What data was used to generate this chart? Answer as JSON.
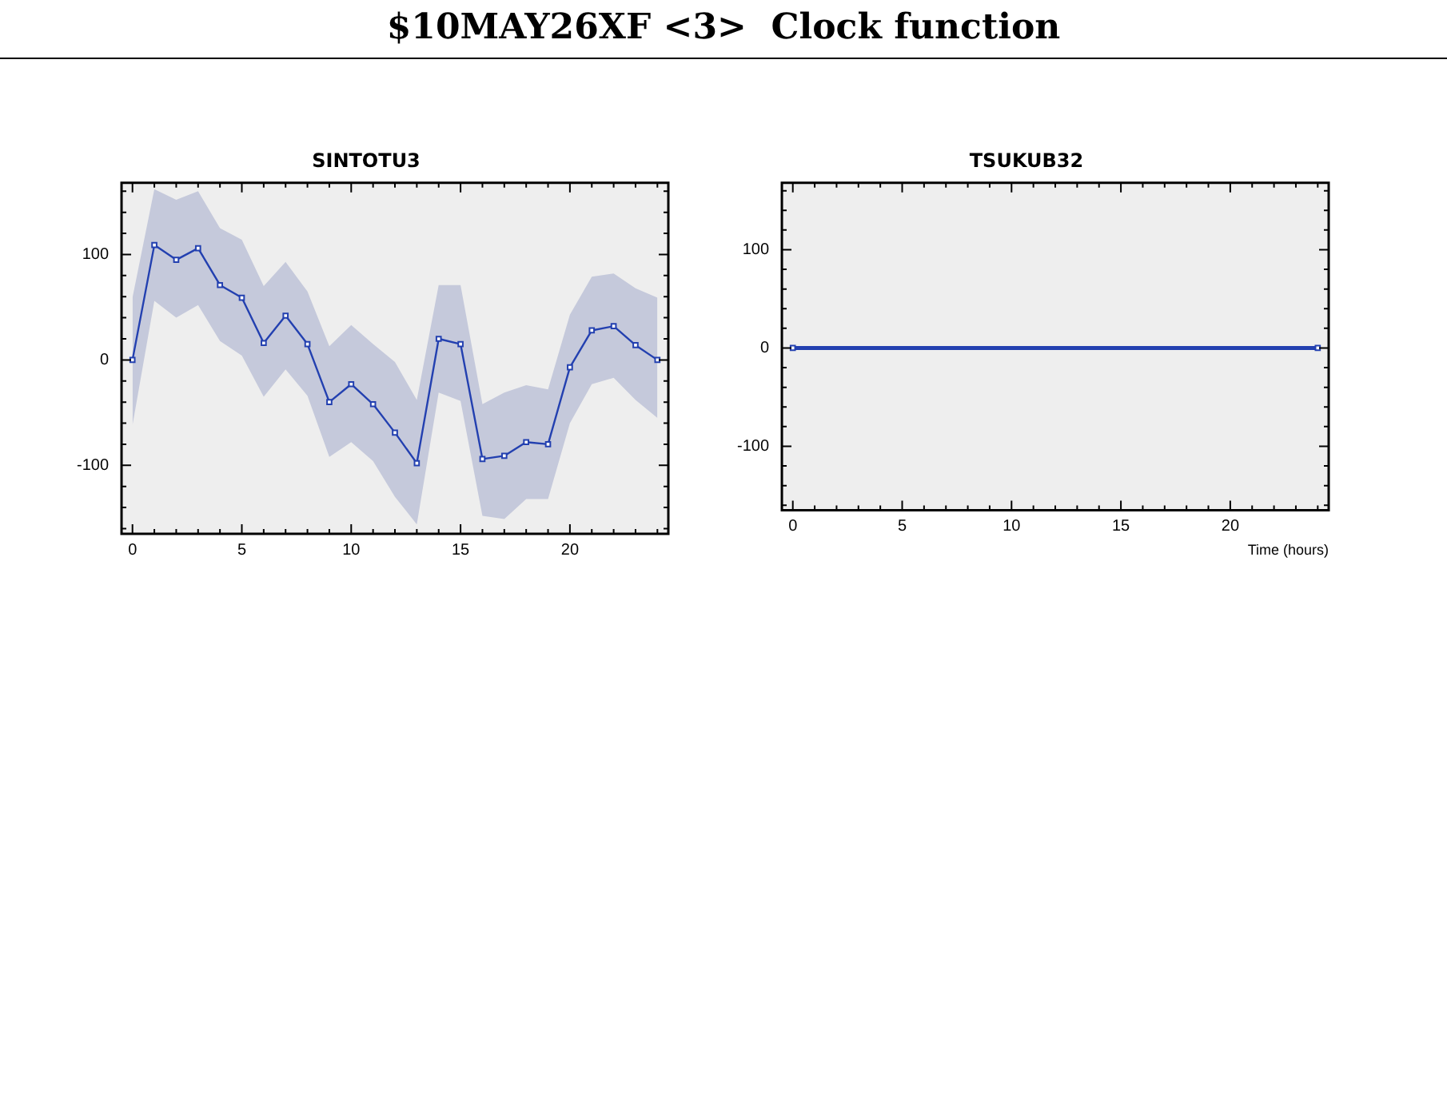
{
  "chart_data": [
    {
      "type": "line",
      "title": "SINTOTU3",
      "annotations": [
        "$10MAY26XF <3>  Clock function"
      ],
      "x": [
        0,
        1,
        2,
        3,
        4,
        5,
        6,
        7,
        8,
        9,
        10,
        11,
        12,
        13,
        14,
        15,
        16,
        17,
        18,
        19,
        20,
        21,
        22,
        23,
        24
      ],
      "series": [
        {
          "color": "#2340b0",
          "values": [
            0,
            109,
            95,
            106,
            71,
            59,
            16,
            42,
            15,
            -40,
            -23,
            -42,
            -69,
            -98,
            20,
            15,
            -94,
            -91,
            -78,
            -80,
            -7,
            28,
            32,
            14,
            0
          ],
          "lower": [
            -62,
            56,
            40,
            52,
            18,
            4,
            -35,
            -9,
            -34,
            -92,
            -78,
            -96,
            -130,
            -156,
            -31,
            -39,
            -148,
            -151,
            -132,
            -132,
            -60,
            -23,
            -17,
            -38,
            -55
          ],
          "upper": [
            59,
            162,
            152,
            160,
            125,
            114,
            70,
            93,
            65,
            13,
            33,
            15,
            -2,
            -38,
            71,
            71,
            -42,
            -31,
            -24,
            -28,
            43,
            79,
            82,
            68,
            59
          ]
        }
      ],
      "xlim": [
        -0.5,
        24.5
      ],
      "xticks": [
        0,
        5,
        10,
        15,
        20
      ],
      "ylim": [
        -165,
        168
      ],
      "yticks": [
        -100,
        0,
        100
      ],
      "marker": "square",
      "line_style": "solid",
      "grid": false,
      "legend": false
    },
    {
      "type": "line",
      "title": "TSUKUB32",
      "xlabel": "Time (hours)",
      "x": [
        0,
        24
      ],
      "series": [
        {
          "color": "#2340b0",
          "values": [
            0,
            0
          ]
        }
      ],
      "xlim": [
        -0.5,
        24.5
      ],
      "xticks": [
        0,
        5,
        10,
        15,
        20
      ],
      "ylim": [
        -165,
        168
      ],
      "yticks": [
        -100,
        0,
        100
      ],
      "marker": "square",
      "line_style": "solid",
      "grid": false,
      "legend": false
    }
  ]
}
